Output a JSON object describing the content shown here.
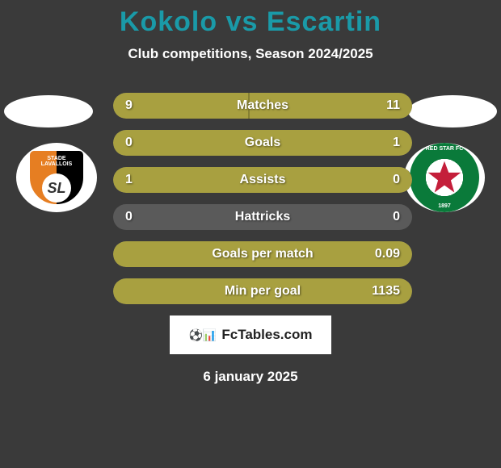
{
  "header": {
    "title_player1": "Kokolo",
    "title_vs": "vs",
    "title_player2": "Escartin",
    "subtitle": "Club competitions, Season 2024/2025",
    "player1_color": "#1a9aa8",
    "player2_color": "#1a9aa8"
  },
  "logos": {
    "left": {
      "name": "Stade Lavallois",
      "text_top": "STADE",
      "text_mid": "LAVALLOIS",
      "sl": "SL"
    },
    "right": {
      "name": "Red Star FC",
      "text": "RED STAR FC",
      "year": "1897",
      "star_color": "#c41e3a",
      "ring_color": "#0a7a3a"
    }
  },
  "stats": {
    "bar_color": "#a8a040",
    "bg_color": "#5a5a5a",
    "rows": [
      {
        "label": "Matches",
        "left_value": "9",
        "right_value": "11",
        "left_pct": 45,
        "right_pct": 55,
        "fill_mode": "split"
      },
      {
        "label": "Goals",
        "left_value": "0",
        "right_value": "1",
        "left_pct": 0,
        "right_pct": 100,
        "fill_mode": "right"
      },
      {
        "label": "Assists",
        "left_value": "1",
        "right_value": "0",
        "left_pct": 100,
        "right_pct": 0,
        "fill_mode": "left"
      },
      {
        "label": "Hattricks",
        "left_value": "0",
        "right_value": "0",
        "left_pct": 0,
        "right_pct": 0,
        "fill_mode": "none"
      },
      {
        "label": "Goals per match",
        "left_value": "",
        "right_value": "0.09",
        "left_pct": 0,
        "right_pct": 100,
        "fill_mode": "right"
      },
      {
        "label": "Min per goal",
        "left_value": "",
        "right_value": "1135",
        "left_pct": 0,
        "right_pct": 100,
        "fill_mode": "right"
      }
    ]
  },
  "footer": {
    "badge_text": "FcTables.com",
    "date": "6 january 2025"
  }
}
